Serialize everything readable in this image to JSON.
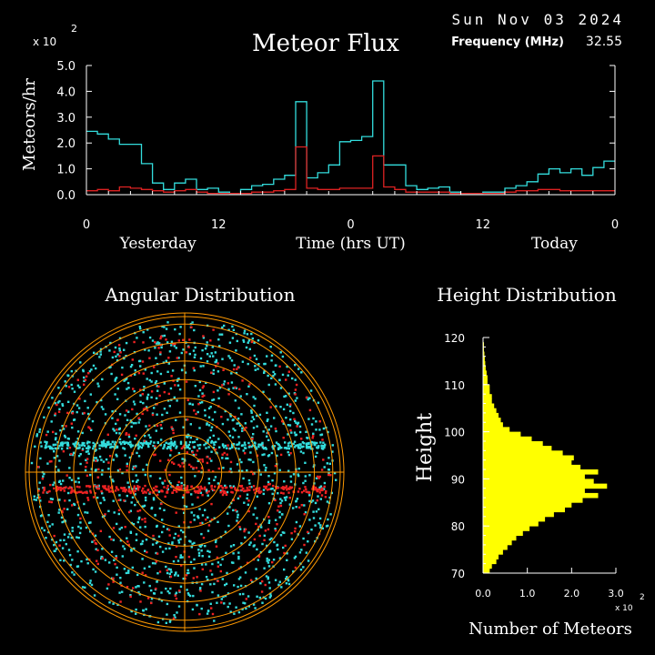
{
  "header": {
    "date": "Sun Nov 03 2024",
    "frequency_label": "Frequency (MHz)",
    "frequency_value": "32.55"
  },
  "colors": {
    "background": "#000000",
    "axes": "#ffffff",
    "total_series": "#33dddd",
    "underdense_series": "#dd2222",
    "histogram": "#ffff00",
    "polar_rings": "#ff9900",
    "radar_echo_cyan": "#33dddd",
    "radar_echo_red": "#ee2222"
  },
  "chart_data": [
    {
      "type": "line",
      "title": "Meteor Flux",
      "ylabel": "Meteors/hr",
      "xlabel": "Time (hrs UT)",
      "y_multiplier": "x 10",
      "y_multiplier_exp": "2",
      "ylim": [
        0,
        5.0
      ],
      "yticks": [
        "0.0",
        "1.0",
        "2.0",
        "3.0",
        "4.0",
        "5.0"
      ],
      "xlim": [
        0,
        48
      ],
      "xticks": [
        {
          "x": 0,
          "label": "0"
        },
        {
          "x": 12,
          "label": "12"
        },
        {
          "x": 24,
          "label": "0"
        },
        {
          "x": 36,
          "label": "12"
        },
        {
          "x": 48,
          "label": "0"
        }
      ],
      "day_labels": [
        {
          "x": 6.5,
          "label": "Yesterday"
        },
        {
          "x": 24,
          "label": "Time (hrs UT)"
        },
        {
          "x": 42.5,
          "label": "Today"
        }
      ],
      "step": 1,
      "series": [
        {
          "color": "#33dddd",
          "values": [
            2.45,
            2.35,
            2.15,
            1.95,
            1.95,
            1.2,
            0.45,
            0.2,
            0.45,
            0.6,
            0.2,
            0.25,
            0.1,
            0.05,
            0.2,
            0.35,
            0.4,
            0.6,
            0.75,
            3.6,
            0.65,
            0.85,
            1.15,
            2.05,
            2.1,
            2.25,
            4.4,
            1.15,
            1.15,
            0.35,
            0.2,
            0.25,
            0.3,
            0.1,
            0.05,
            0.05,
            0.1,
            0.1,
            0.25,
            0.35,
            0.5,
            0.8,
            1.0,
            0.85,
            1.0,
            0.75,
            1.05,
            1.3
          ]
        },
        {
          "color": "#dd2222",
          "values": [
            0.15,
            0.2,
            0.15,
            0.3,
            0.25,
            0.2,
            0.15,
            0.1,
            0.15,
            0.2,
            0.1,
            0.05,
            0.05,
            0.05,
            0.05,
            0.1,
            0.1,
            0.15,
            0.2,
            1.85,
            0.25,
            0.2,
            0.2,
            0.25,
            0.25,
            0.25,
            1.5,
            0.3,
            0.2,
            0.1,
            0.1,
            0.1,
            0.1,
            0.05,
            0.05,
            0.05,
            0.05,
            0.05,
            0.1,
            0.15,
            0.15,
            0.2,
            0.2,
            0.15,
            0.15,
            0.15,
            0.15,
            0.15
          ]
        }
      ]
    },
    {
      "type": "scatter",
      "title": "Angular Distribution",
      "projection": "polar",
      "rings": 8,
      "crosshair": true,
      "bands": [
        {
          "offset_y": -0.11,
          "color": "#ee2222"
        },
        {
          "offset_y": 0.17,
          "color": "#33dddd"
        }
      ]
    },
    {
      "type": "bar",
      "orientation": "horizontal",
      "title": "Height Distribution",
      "ylabel": "Height",
      "xlabel": "Number of Meteors",
      "x_multiplier": "x 10",
      "x_multiplier_exp": "2",
      "xlim": [
        0,
        3.0
      ],
      "xticks": [
        "0.0",
        "1.0",
        "2.0",
        "3.0"
      ],
      "ylim": [
        70,
        120
      ],
      "yticks": [
        "70",
        "80",
        "90",
        "100",
        "110",
        "120"
      ],
      "bin_start": 70,
      "bin_width": 1,
      "values": [
        0.15,
        0.2,
        0.3,
        0.35,
        0.45,
        0.55,
        0.65,
        0.75,
        0.9,
        1.05,
        1.25,
        1.4,
        1.6,
        1.85,
        2.0,
        2.25,
        2.6,
        2.3,
        2.8,
        2.5,
        2.3,
        2.6,
        2.2,
        2.0,
        2.05,
        1.8,
        1.55,
        1.35,
        1.1,
        0.85,
        0.6,
        0.45,
        0.4,
        0.35,
        0.3,
        0.25,
        0.2,
        0.2,
        0.15,
        0.15,
        0.1,
        0.1,
        0.08,
        0.06,
        0.05,
        0.04,
        0.03,
        0.02,
        0.02,
        0.01
      ]
    }
  ]
}
